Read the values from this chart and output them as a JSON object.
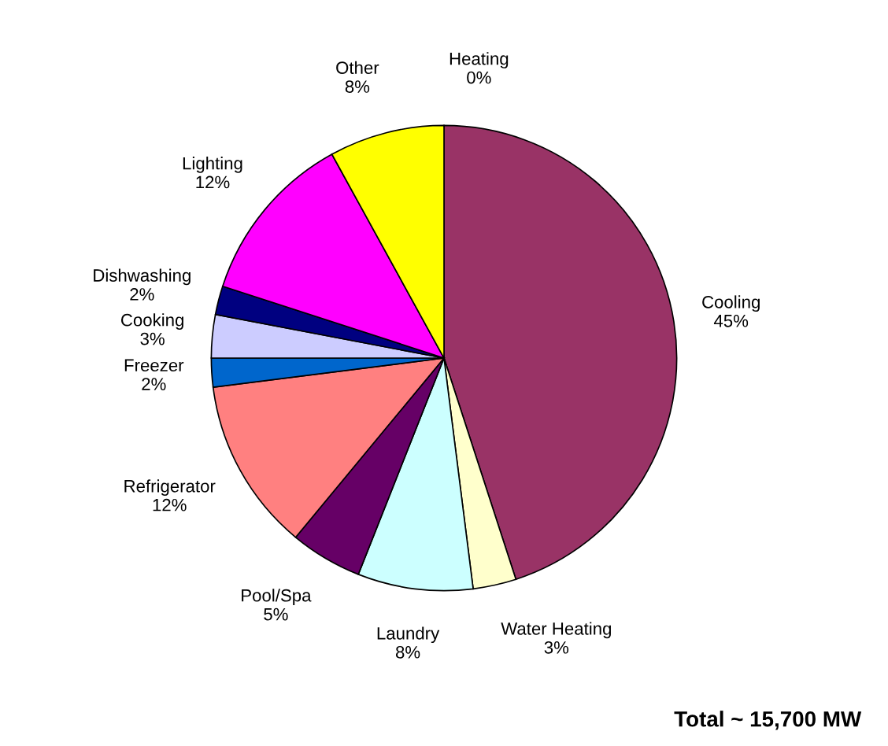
{
  "chart_data": {
    "type": "pie",
    "categories": [
      "Heating",
      "Cooling",
      "Water Heating",
      "Laundry",
      "Pool/Spa",
      "Refrigerator",
      "Freezer",
      "Cooking",
      "Dishwashing",
      "Lighting",
      "Other"
    ],
    "values": [
      0,
      45,
      3,
      8,
      5,
      12,
      2,
      3,
      2,
      12,
      8
    ],
    "value_labels": [
      "0%",
      "45%",
      "3%",
      "8%",
      "5%",
      "12%",
      "2%",
      "3%",
      "2%",
      "12%",
      "8%"
    ],
    "colors": [
      "#9999ff",
      "#993366",
      "#ffffcc",
      "#ccffff",
      "#660066",
      "#ff8080",
      "#0066cc",
      "#ccccff",
      "#000080",
      "#ff00ff",
      "#ffff00"
    ],
    "annotations": [
      "Total ~ 15,700 MW"
    ]
  }
}
